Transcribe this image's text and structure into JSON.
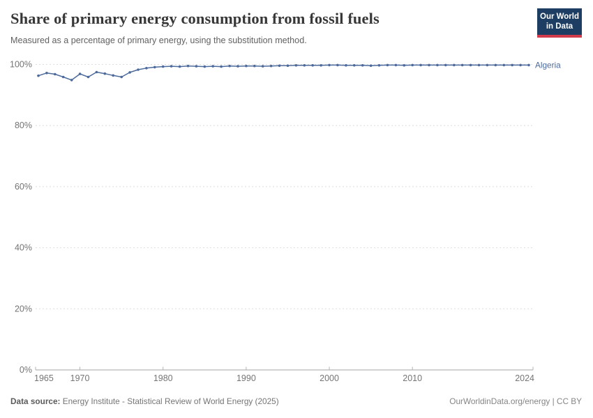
{
  "header": {
    "title": "Share of primary energy consumption from fossil fuels",
    "subtitle": "Measured as a percentage of primary energy, using the substitution method.",
    "logo": {
      "line1": "Our World",
      "line2": "in Data",
      "bg_color": "#1d3d63",
      "accent_color": "#d13b4b"
    }
  },
  "chart_data": {
    "type": "line",
    "title": "Share of primary energy consumption from fossil fuels",
    "xlabel": "",
    "ylabel": "",
    "xlim": [
      1965,
      2024
    ],
    "ylim": [
      0,
      100
    ],
    "grid": "horizontal-dashed",
    "legend_position": "end-of-line-label",
    "yticks": [
      {
        "value": 0,
        "label": "0%"
      },
      {
        "value": 20,
        "label": "20%"
      },
      {
        "value": 40,
        "label": "40%"
      },
      {
        "value": 60,
        "label": "60%"
      },
      {
        "value": 80,
        "label": "80%"
      },
      {
        "value": 100,
        "label": "100%"
      }
    ],
    "xticks": [
      {
        "value": 1965,
        "label": "1965",
        "anchor": "start"
      },
      {
        "value": 1970,
        "label": "1970",
        "anchor": "middle"
      },
      {
        "value": 1980,
        "label": "1980",
        "anchor": "middle"
      },
      {
        "value": 1990,
        "label": "1990",
        "anchor": "middle"
      },
      {
        "value": 2000,
        "label": "2000",
        "anchor": "middle"
      },
      {
        "value": 2010,
        "label": "2010",
        "anchor": "middle"
      },
      {
        "value": 2024,
        "label": "2024",
        "anchor": "end"
      }
    ],
    "series": [
      {
        "name": "Algeria",
        "color": "#4c6a9c",
        "x": [
          1965,
          1966,
          1967,
          1968,
          1969,
          1970,
          1971,
          1972,
          1973,
          1974,
          1975,
          1976,
          1977,
          1978,
          1979,
          1980,
          1981,
          1982,
          1983,
          1984,
          1985,
          1986,
          1987,
          1988,
          1989,
          1990,
          1991,
          1992,
          1993,
          1994,
          1995,
          1996,
          1997,
          1998,
          1999,
          2000,
          2001,
          2002,
          2003,
          2004,
          2005,
          2006,
          2007,
          2008,
          2009,
          2010,
          2011,
          2012,
          2013,
          2014,
          2015,
          2016,
          2017,
          2018,
          2019,
          2020,
          2021,
          2022,
          2023,
          2024
        ],
        "values": [
          96.3,
          97.2,
          96.8,
          95.9,
          94.9,
          96.9,
          95.9,
          97.5,
          97.0,
          96.4,
          95.9,
          97.4,
          98.3,
          98.8,
          99.1,
          99.3,
          99.4,
          99.3,
          99.5,
          99.4,
          99.3,
          99.4,
          99.3,
          99.5,
          99.4,
          99.5,
          99.5,
          99.4,
          99.5,
          99.6,
          99.6,
          99.7,
          99.7,
          99.7,
          99.7,
          99.8,
          99.8,
          99.7,
          99.7,
          99.7,
          99.6,
          99.7,
          99.8,
          99.8,
          99.7,
          99.8,
          99.8,
          99.8,
          99.8,
          99.8,
          99.8,
          99.8,
          99.8,
          99.8,
          99.8,
          99.8,
          99.8,
          99.8,
          99.8,
          99.8
        ]
      }
    ]
  },
  "footer": {
    "source_label": "Data source:",
    "source_text": " Energy Institute - Statistical Review of World Energy (2025)",
    "credit": "OurWorldinData.org/energy | CC BY"
  }
}
